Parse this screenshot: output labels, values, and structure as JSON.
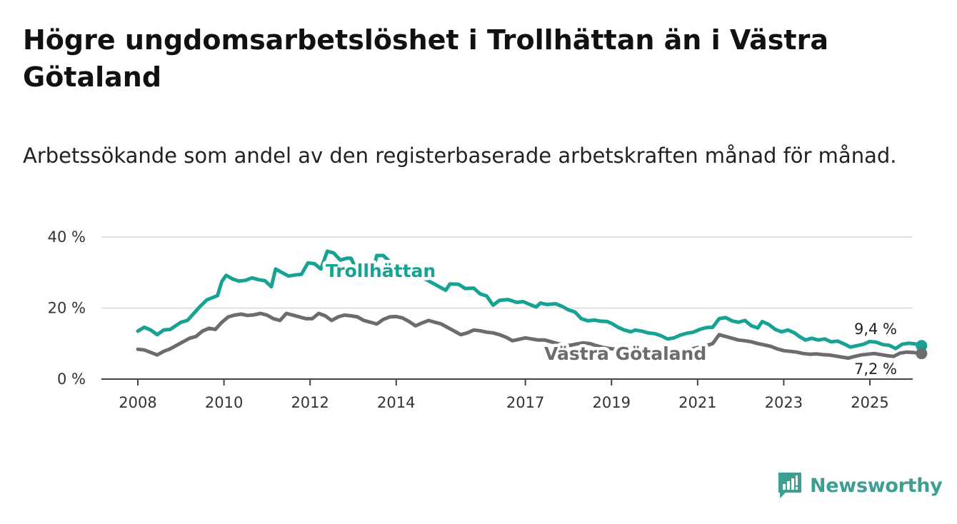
{
  "title": "Högre ungdomsarbetslöshet i Trollhättan än i Västra Götaland",
  "subtitle": "Arbetssökande som andel av den registerbaserade arbetskraften månad för månad.",
  "brand": {
    "name": "Newsworthy",
    "color": "#3d9e94",
    "icon": "bar-chart-speech-bubble-icon"
  },
  "chart_data": {
    "type": "line",
    "ylim": [
      0,
      40
    ],
    "yticks": [
      0,
      20,
      40
    ],
    "ytick_labels": [
      "0 %",
      "20 %",
      "40 %"
    ],
    "xlim": [
      2008,
      2025.3
    ],
    "xticks": [
      2008,
      2010,
      2012,
      2014,
      2017,
      2019,
      2021,
      2023,
      2025
    ],
    "xtick_labels": [
      "2008",
      "2010",
      "2012",
      "2014",
      "2017",
      "2019",
      "2021",
      "2023",
      "2025"
    ],
    "grid": true,
    "series": [
      {
        "name": "Trollhättan",
        "color": "#16a394",
        "end_label": "9,4 %",
        "points": [
          [
            2008.0,
            13.5
          ],
          [
            2008.15,
            14.6
          ],
          [
            2008.3,
            13.8
          ],
          [
            2008.45,
            12.5
          ],
          [
            2008.6,
            13.8
          ],
          [
            2008.75,
            14.0
          ],
          [
            2008.9,
            15.2
          ],
          [
            2009.0,
            16.0
          ],
          [
            2009.15,
            16.5
          ],
          [
            2009.3,
            18.5
          ],
          [
            2009.45,
            20.5
          ],
          [
            2009.6,
            22.3
          ],
          [
            2009.75,
            23.0
          ],
          [
            2009.85,
            23.5
          ],
          [
            2009.95,
            27.5
          ],
          [
            2010.05,
            29.2
          ],
          [
            2010.2,
            28.2
          ],
          [
            2010.35,
            27.6
          ],
          [
            2010.5,
            27.8
          ],
          [
            2010.65,
            28.5
          ],
          [
            2010.8,
            28.0
          ],
          [
            2010.95,
            27.7
          ],
          [
            2011.1,
            26.0
          ],
          [
            2011.2,
            31.0
          ],
          [
            2011.35,
            30.0
          ],
          [
            2011.5,
            29.0
          ],
          [
            2011.65,
            29.3
          ],
          [
            2011.8,
            29.5
          ],
          [
            2011.95,
            32.7
          ],
          [
            2012.1,
            32.5
          ],
          [
            2012.25,
            31.0
          ],
          [
            2012.4,
            36.0
          ],
          [
            2012.55,
            35.5
          ],
          [
            2012.7,
            33.5
          ],
          [
            2012.85,
            34.0
          ],
          [
            2012.95,
            34.0
          ],
          [
            2013.05,
            31.5
          ],
          [
            2013.2,
            31.5
          ],
          [
            2013.35,
            30.5
          ],
          [
            2013.45,
            30.0
          ],
          [
            2013.55,
            34.8
          ],
          [
            2013.7,
            34.8
          ],
          [
            2013.9,
            32.5
          ],
          [
            2014.1,
            31.0
          ],
          [
            2014.3,
            30.0
          ],
          [
            2014.5,
            29.5
          ],
          [
            2014.7,
            28.0
          ],
          [
            2014.85,
            27.0
          ],
          [
            2015.0,
            26.0
          ],
          [
            2015.15,
            25.0
          ],
          [
            2015.25,
            26.8
          ],
          [
            2015.45,
            26.7
          ],
          [
            2015.6,
            25.5
          ],
          [
            2015.8,
            25.6
          ],
          [
            2015.95,
            24.0
          ],
          [
            2016.1,
            23.4
          ],
          [
            2016.25,
            20.8
          ],
          [
            2016.4,
            22.2
          ],
          [
            2016.6,
            22.4
          ],
          [
            2016.8,
            21.6
          ],
          [
            2016.95,
            21.8
          ],
          [
            2017.1,
            21.0
          ],
          [
            2017.25,
            20.3
          ],
          [
            2017.35,
            21.4
          ],
          [
            2017.5,
            21.0
          ],
          [
            2017.7,
            21.2
          ],
          [
            2017.85,
            20.5
          ],
          [
            2018.0,
            19.5
          ],
          [
            2018.15,
            18.9
          ],
          [
            2018.3,
            17.0
          ],
          [
            2018.45,
            16.4
          ],
          [
            2018.6,
            16.6
          ],
          [
            2018.75,
            16.3
          ],
          [
            2018.9,
            16.2
          ],
          [
            2019.0,
            15.7
          ],
          [
            2019.15,
            14.6
          ],
          [
            2019.3,
            13.8
          ],
          [
            2019.45,
            13.3
          ],
          [
            2019.55,
            13.8
          ],
          [
            2019.7,
            13.5
          ],
          [
            2019.85,
            13.0
          ],
          [
            2020.0,
            12.8
          ],
          [
            2020.15,
            12.2
          ],
          [
            2020.3,
            11.3
          ],
          [
            2020.45,
            11.6
          ],
          [
            2020.6,
            12.4
          ],
          [
            2020.75,
            12.9
          ],
          [
            2020.9,
            13.2
          ],
          [
            2021.05,
            14.0
          ],
          [
            2021.2,
            14.5
          ],
          [
            2021.35,
            14.6
          ],
          [
            2021.5,
            17.0
          ],
          [
            2021.65,
            17.3
          ],
          [
            2021.8,
            16.4
          ],
          [
            2021.95,
            16.0
          ],
          [
            2022.1,
            16.5
          ],
          [
            2022.25,
            15.0
          ],
          [
            2022.4,
            14.4
          ],
          [
            2022.5,
            16.2
          ],
          [
            2022.65,
            15.4
          ],
          [
            2022.8,
            14.0
          ],
          [
            2022.95,
            13.3
          ],
          [
            2023.1,
            13.8
          ],
          [
            2023.25,
            13.0
          ],
          [
            2023.35,
            12.1
          ],
          [
            2023.5,
            11.0
          ],
          [
            2023.65,
            11.5
          ],
          [
            2023.8,
            11.0
          ],
          [
            2023.95,
            11.3
          ],
          [
            2024.1,
            10.5
          ],
          [
            2024.25,
            10.7
          ],
          [
            2024.4,
            9.9
          ],
          [
            2024.55,
            9.0
          ],
          [
            2024.7,
            9.4
          ],
          [
            2024.85,
            9.8
          ],
          [
            2025.0,
            10.6
          ],
          [
            2025.15,
            10.4
          ],
          [
            2025.3,
            9.7
          ],
          [
            2025.45,
            9.5
          ],
          [
            2025.6,
            8.6
          ],
          [
            2025.75,
            9.8
          ],
          [
            2025.9,
            10.1
          ],
          [
            2026.05,
            9.9
          ],
          [
            2026.2,
            9.4
          ]
        ]
      },
      {
        "name": "Västra Götaland",
        "color": "#6b6b70",
        "end_label": "7,2 %",
        "points": [
          [
            2008.0,
            8.4
          ],
          [
            2008.15,
            8.2
          ],
          [
            2008.3,
            7.5
          ],
          [
            2008.45,
            6.8
          ],
          [
            2008.6,
            7.8
          ],
          [
            2008.75,
            8.5
          ],
          [
            2008.9,
            9.5
          ],
          [
            2009.05,
            10.5
          ],
          [
            2009.2,
            11.5
          ],
          [
            2009.35,
            12.0
          ],
          [
            2009.5,
            13.5
          ],
          [
            2009.65,
            14.3
          ],
          [
            2009.8,
            14.0
          ],
          [
            2009.95,
            16.0
          ],
          [
            2010.1,
            17.5
          ],
          [
            2010.25,
            18.0
          ],
          [
            2010.4,
            18.3
          ],
          [
            2010.55,
            17.9
          ],
          [
            2010.7,
            18.1
          ],
          [
            2010.85,
            18.5
          ],
          [
            2011.0,
            18.0
          ],
          [
            2011.15,
            17.0
          ],
          [
            2011.3,
            16.5
          ],
          [
            2011.45,
            18.5
          ],
          [
            2011.6,
            18.0
          ],
          [
            2011.75,
            17.5
          ],
          [
            2011.9,
            17.0
          ],
          [
            2012.05,
            17.0
          ],
          [
            2012.2,
            18.5
          ],
          [
            2012.35,
            17.8
          ],
          [
            2012.5,
            16.5
          ],
          [
            2012.65,
            17.5
          ],
          [
            2012.8,
            18.0
          ],
          [
            2012.95,
            17.8
          ],
          [
            2013.1,
            17.5
          ],
          [
            2013.25,
            16.5
          ],
          [
            2013.4,
            16.0
          ],
          [
            2013.55,
            15.5
          ],
          [
            2013.7,
            16.8
          ],
          [
            2013.85,
            17.5
          ],
          [
            2014.0,
            17.6
          ],
          [
            2014.15,
            17.2
          ],
          [
            2014.3,
            16.2
          ],
          [
            2014.45,
            15.0
          ],
          [
            2014.6,
            15.8
          ],
          [
            2014.75,
            16.5
          ],
          [
            2014.9,
            16.0
          ],
          [
            2015.05,
            15.5
          ],
          [
            2015.2,
            14.5
          ],
          [
            2015.35,
            13.5
          ],
          [
            2015.5,
            12.5
          ],
          [
            2015.65,
            13.0
          ],
          [
            2015.8,
            13.8
          ],
          [
            2015.95,
            13.6
          ],
          [
            2016.1,
            13.2
          ],
          [
            2016.25,
            13.0
          ],
          [
            2016.4,
            12.5
          ],
          [
            2016.55,
            11.8
          ],
          [
            2016.7,
            10.8
          ],
          [
            2016.85,
            11.2
          ],
          [
            2017.0,
            11.6
          ],
          [
            2017.15,
            11.3
          ],
          [
            2017.3,
            11.0
          ],
          [
            2017.45,
            11.0
          ],
          [
            2017.6,
            10.5
          ],
          [
            2017.75,
            10.0
          ],
          [
            2017.9,
            9.6
          ],
          [
            2018.05,
            9.5
          ],
          [
            2018.2,
            9.9
          ],
          [
            2018.35,
            10.2
          ],
          [
            2018.5,
            10.0
          ],
          [
            2018.65,
            9.4
          ],
          [
            2018.8,
            8.9
          ],
          [
            2018.95,
            8.6
          ],
          [
            2019.1,
            8.4
          ],
          [
            2019.25,
            8.0
          ],
          [
            2019.4,
            8.0
          ],
          [
            2019.55,
            8.3
          ],
          [
            2019.7,
            8.1
          ],
          [
            2019.85,
            7.9
          ],
          [
            2020.0,
            7.7
          ],
          [
            2020.15,
            7.5
          ],
          [
            2020.3,
            7.6
          ],
          [
            2020.45,
            8.2
          ],
          [
            2020.6,
            8.0
          ],
          [
            2020.75,
            8.3
          ],
          [
            2020.9,
            8.6
          ],
          [
            2021.05,
            9.0
          ],
          [
            2021.2,
            9.4
          ],
          [
            2021.35,
            10.0
          ],
          [
            2021.5,
            12.5
          ],
          [
            2021.65,
            12.0
          ],
          [
            2021.8,
            11.5
          ],
          [
            2021.95,
            11.0
          ],
          [
            2022.1,
            10.8
          ],
          [
            2022.25,
            10.5
          ],
          [
            2022.4,
            10.0
          ],
          [
            2022.55,
            9.6
          ],
          [
            2022.7,
            9.2
          ],
          [
            2022.85,
            8.5
          ],
          [
            2023.0,
            8.0
          ],
          [
            2023.15,
            7.8
          ],
          [
            2023.3,
            7.6
          ],
          [
            2023.45,
            7.2
          ],
          [
            2023.6,
            7.0
          ],
          [
            2023.75,
            7.1
          ],
          [
            2023.9,
            6.9
          ],
          [
            2024.05,
            6.8
          ],
          [
            2024.2,
            6.5
          ],
          [
            2024.35,
            6.2
          ],
          [
            2024.5,
            5.9
          ],
          [
            2024.65,
            6.4
          ],
          [
            2024.8,
            6.8
          ],
          [
            2024.95,
            7.0
          ],
          [
            2025.1,
            7.2
          ],
          [
            2025.25,
            6.9
          ],
          [
            2025.4,
            6.6
          ],
          [
            2025.55,
            6.4
          ],
          [
            2025.7,
            7.3
          ],
          [
            2025.85,
            7.6
          ],
          [
            2026.0,
            7.5
          ],
          [
            2026.2,
            7.2
          ]
        ]
      }
    ]
  }
}
